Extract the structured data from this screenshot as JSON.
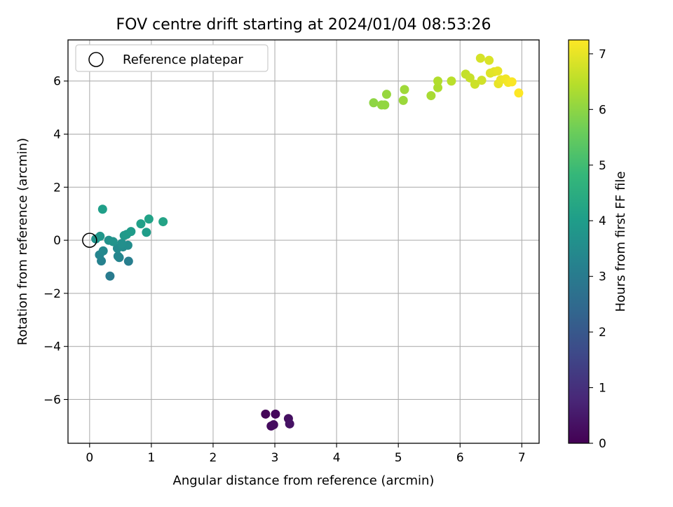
{
  "chart_data": {
    "type": "scatter",
    "title": "FOV centre drift starting at 2024/01/04 08:53:26",
    "xlabel": "Angular distance from reference (arcmin)",
    "ylabel": "Rotation from reference (arcmin)",
    "xlim": [
      -0.35,
      7.28
    ],
    "ylim": [
      -7.65,
      7.55
    ],
    "xticks": [
      0,
      1,
      2,
      3,
      4,
      5,
      6,
      7
    ],
    "xtick_labels": [
      "0",
      "1",
      "2",
      "3",
      "4",
      "5",
      "6",
      "7"
    ],
    "yticks": [
      -6,
      -4,
      -2,
      0,
      2,
      4,
      6
    ],
    "ytick_labels": [
      "−6",
      "−4",
      "−2",
      "0",
      "2",
      "4",
      "6"
    ],
    "grid": true,
    "legend": {
      "position": "top-left",
      "entries": [
        "Reference platepar"
      ]
    },
    "reference_point": {
      "x": 0,
      "y": 0
    },
    "colorbar": {
      "label": "Hours from first FF file",
      "range": [
        0,
        7.25
      ],
      "ticks": [
        0,
        1,
        2,
        3,
        4,
        5,
        6,
        7
      ],
      "tick_labels": [
        "0",
        "1",
        "2",
        "3",
        "4",
        "5",
        "6",
        "7"
      ],
      "colormap": "viridis"
    },
    "points": [
      {
        "x": 2.85,
        "y": -6.55,
        "c": 0.1
      },
      {
        "x": 3.01,
        "y": -6.55,
        "c": 0.15
      },
      {
        "x": 2.94,
        "y": -7.0,
        "c": 0.2
      },
      {
        "x": 2.98,
        "y": -6.95,
        "c": 0.25
      },
      {
        "x": 3.22,
        "y": -6.72,
        "c": 0.3
      },
      {
        "x": 3.24,
        "y": -6.92,
        "c": 0.35
      },
      {
        "x": 0.33,
        "y": -1.35,
        "c": 3.0
      },
      {
        "x": 0.63,
        "y": -0.79,
        "c": 3.1
      },
      {
        "x": 0.19,
        "y": -0.78,
        "c": 3.2
      },
      {
        "x": 0.48,
        "y": -0.65,
        "c": 3.25
      },
      {
        "x": 0.16,
        "y": -0.55,
        "c": 3.3
      },
      {
        "x": 0.46,
        "y": -0.6,
        "c": 3.35
      },
      {
        "x": 0.22,
        "y": -0.4,
        "c": 3.4
      },
      {
        "x": 0.45,
        "y": -0.3,
        "c": 3.45
      },
      {
        "x": 0.54,
        "y": -0.25,
        "c": 3.5
      },
      {
        "x": 0.62,
        "y": -0.19,
        "c": 3.55
      },
      {
        "x": 0.52,
        "y": -0.12,
        "c": 3.6
      },
      {
        "x": 0.31,
        "y": 0.0,
        "c": 3.65
      },
      {
        "x": 0.38,
        "y": -0.05,
        "c": 3.7
      },
      {
        "x": 0.1,
        "y": 0.05,
        "c": 3.75
      },
      {
        "x": 0.17,
        "y": 0.15,
        "c": 3.8
      },
      {
        "x": 0.56,
        "y": 0.18,
        "c": 3.85
      },
      {
        "x": 0.6,
        "y": 0.22,
        "c": 3.9
      },
      {
        "x": 0.67,
        "y": 0.33,
        "c": 3.95
      },
      {
        "x": 0.92,
        "y": 0.3,
        "c": 4.0
      },
      {
        "x": 0.21,
        "y": 1.17,
        "c": 4.05
      },
      {
        "x": 0.83,
        "y": 0.62,
        "c": 4.1
      },
      {
        "x": 0.96,
        "y": 0.8,
        "c": 4.15
      },
      {
        "x": 1.19,
        "y": 0.7,
        "c": 4.2
      },
      {
        "x": 4.6,
        "y": 5.18,
        "c": 6.0
      },
      {
        "x": 4.73,
        "y": 5.1,
        "c": 6.05
      },
      {
        "x": 4.78,
        "y": 5.1,
        "c": 6.05
      },
      {
        "x": 4.81,
        "y": 5.5,
        "c": 6.1
      },
      {
        "x": 5.08,
        "y": 5.27,
        "c": 6.15
      },
      {
        "x": 5.1,
        "y": 5.68,
        "c": 6.2
      },
      {
        "x": 5.53,
        "y": 5.45,
        "c": 6.3
      },
      {
        "x": 5.64,
        "y": 5.75,
        "c": 6.35
      },
      {
        "x": 5.64,
        "y": 6.0,
        "c": 6.4
      },
      {
        "x": 5.86,
        "y": 6.0,
        "c": 6.5
      },
      {
        "x": 6.09,
        "y": 6.26,
        "c": 6.6
      },
      {
        "x": 6.16,
        "y": 6.12,
        "c": 6.65
      },
      {
        "x": 6.24,
        "y": 5.88,
        "c": 6.7
      },
      {
        "x": 6.35,
        "y": 6.03,
        "c": 6.75
      },
      {
        "x": 6.33,
        "y": 6.86,
        "c": 6.8
      },
      {
        "x": 6.47,
        "y": 6.78,
        "c": 6.85
      },
      {
        "x": 6.49,
        "y": 6.3,
        "c": 6.9
      },
      {
        "x": 6.55,
        "y": 6.35,
        "c": 6.95
      },
      {
        "x": 6.61,
        "y": 6.38,
        "c": 7.0
      },
      {
        "x": 6.62,
        "y": 5.9,
        "c": 7.0
      },
      {
        "x": 6.66,
        "y": 6.05,
        "c": 7.05
      },
      {
        "x": 6.74,
        "y": 6.08,
        "c": 7.1
      },
      {
        "x": 6.78,
        "y": 5.95,
        "c": 7.15
      },
      {
        "x": 6.84,
        "y": 5.97,
        "c": 7.2
      },
      {
        "x": 6.95,
        "y": 5.55,
        "c": 7.25
      }
    ]
  }
}
